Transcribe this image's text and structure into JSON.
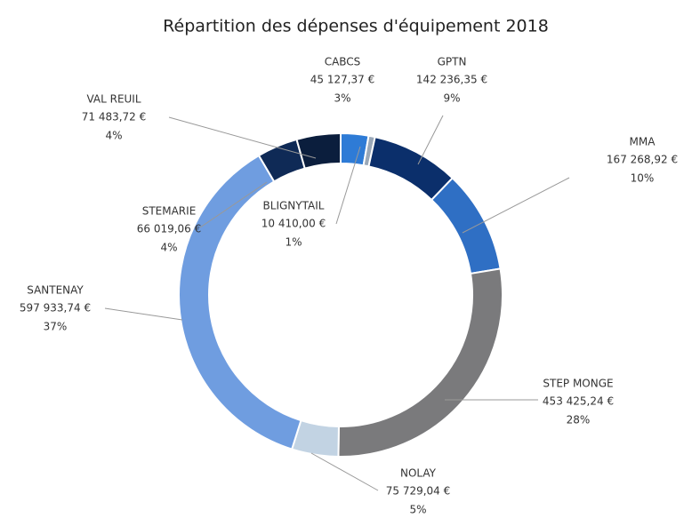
{
  "chart_data": {
    "type": "donut",
    "title": "Répartition des dépenses d'équipement 2018",
    "categories": [
      "CABCS",
      "BLIGNYTAIL",
      "GPTN",
      "MMA",
      "STEP MONGE",
      "NOLAY",
      "SANTENAY",
      "STEMARIE",
      "VAL REUIL"
    ],
    "values": [
      45127.37,
      10410.0,
      142236.35,
      167268.92,
      453425.24,
      75729.04,
      597933.74,
      66019.06,
      71483.72
    ],
    "value_labels": [
      "45 127,37 €",
      "10 410,00 €",
      "142 236,35 €",
      "167 268,92 €",
      "453 425,24 €",
      "75 729,04 €",
      "597 933,74 €",
      "66 019,06 €",
      "71 483,72 €"
    ],
    "percent_labels": [
      "3%",
      "1%",
      "9%",
      "10%",
      "28%",
      "5%",
      "37%",
      "4%",
      "4%"
    ],
    "colors": [
      "#2e7bd6",
      "#9aa8b8",
      "#0b2f6b",
      "#2f6fc4",
      "#7a7a7c",
      "#c2d3e3",
      "#6f9de0",
      "#0f2a56",
      "#0b1e3d"
    ]
  }
}
